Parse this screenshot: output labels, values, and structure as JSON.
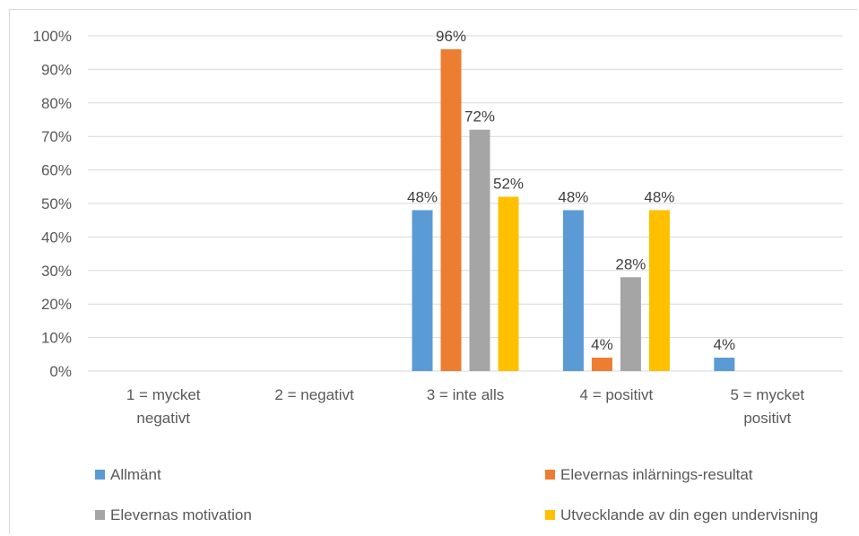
{
  "chart_data": {
    "type": "bar",
    "categories": [
      [
        "1 = mycket",
        "negativt"
      ],
      [
        "2 = negativt"
      ],
      [
        "3 = inte alls"
      ],
      [
        "4 = positivt"
      ],
      [
        "5 = mycket",
        "positivt"
      ]
    ],
    "series": [
      {
        "name": "Allmänt",
        "color": "#5b9bd5",
        "values": [
          0,
          0,
          48,
          48,
          4
        ],
        "labels": [
          "",
          "",
          "48%",
          "48%",
          "4%"
        ]
      },
      {
        "name": "Elevernas inlärnings-resultat",
        "color": "#ed7d31",
        "values": [
          0,
          0,
          96,
          4,
          0
        ],
        "labels": [
          "",
          "",
          "96%",
          "4%",
          ""
        ]
      },
      {
        "name": "Elevernas motivation",
        "color": "#a5a5a5",
        "values": [
          0,
          0,
          72,
          28,
          0
        ],
        "labels": [
          "",
          "",
          "72%",
          "28%",
          ""
        ]
      },
      {
        "name": "Utvecklande av din egen undervisning",
        "color": "#ffc000",
        "values": [
          0,
          0,
          52,
          48,
          0
        ],
        "labels": [
          "",
          "",
          "52%",
          "48%",
          ""
        ]
      }
    ],
    "yticks": [
      "0%",
      "10%",
      "20%",
      "30%",
      "40%",
      "50%",
      "60%",
      "70%",
      "80%",
      "90%",
      "100%"
    ],
    "ylim": [
      0,
      100
    ],
    "grid": true,
    "legend_position": "bottom"
  }
}
